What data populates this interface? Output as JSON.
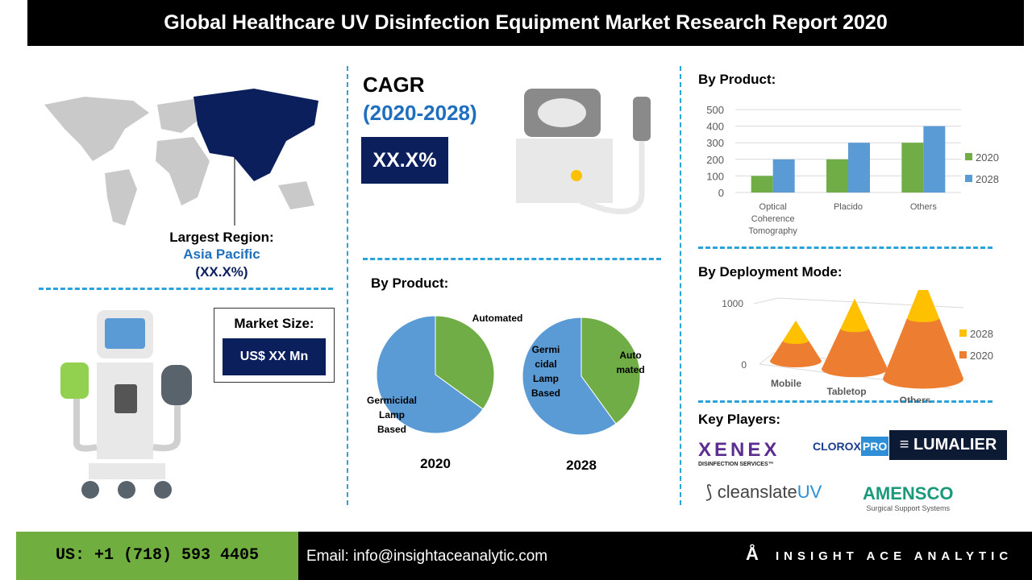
{
  "title": "Global Healthcare UV Disinfection Equipment  Market Research Report 2020",
  "region": {
    "label": "Largest Region:",
    "name": "Asia Pacific",
    "share": "(XX.X%)"
  },
  "cagr": {
    "label": "CAGR",
    "period": "(2020-2028)",
    "value": "XX.X%"
  },
  "market_size": {
    "label": "Market Size:",
    "value": "US$ XX Mn"
  },
  "pie_section": {
    "title": "By Product:"
  },
  "bar_section": {
    "title": "By Product:"
  },
  "cone_section": {
    "title": "By Deployment Mode:"
  },
  "key_players": {
    "title": "Key Players:",
    "logos": [
      "XENEX DISINFECTION SERVICES",
      "CLOROXPRO",
      "LUMALIER",
      "cleanslateUV",
      "AMENSCO Surgical Support Systems"
    ]
  },
  "footer": {
    "phone": "US: +1 (718) 593 4405",
    "email": "Email: info@insightaceanalytic.com",
    "brand": "INSIGHT ACE ANALYTIC"
  },
  "colors": {
    "green": "#70ad47",
    "blue": "#5b9bd5",
    "navy": "#0b1f5c",
    "dash": "#29a3d9",
    "yellow": "#ffc000",
    "orange": "#ed7d31"
  },
  "chart_data": [
    {
      "type": "bar",
      "title": "By Product:",
      "categories": [
        "Optical Coherence Tomography",
        "Placido",
        "Others"
      ],
      "series": [
        {
          "name": "2020",
          "values": [
            100,
            200,
            300
          ]
        },
        {
          "name": "2028",
          "values": [
            200,
            300,
            400
          ]
        }
      ],
      "ylim": [
        0,
        500
      ],
      "yticks": [
        0,
        100,
        200,
        300,
        400,
        500
      ],
      "grid": true,
      "legend": "right"
    },
    {
      "type": "pie",
      "title": "2020",
      "labels": [
        "Automated",
        "Germicidal Lamp Based"
      ],
      "values": [
        35,
        65
      ]
    },
    {
      "type": "pie",
      "title": "2028",
      "labels": [
        "Auto mated",
        "Germi cidal Lamp Based"
      ],
      "values": [
        40,
        60
      ]
    },
    {
      "type": "bar",
      "subtype": "3d-cone-stacked",
      "title": "By Deployment Mode:",
      "categories": [
        "Mobile",
        "Tabletop",
        "Others"
      ],
      "series": [
        {
          "name": "2020",
          "values": [
            100,
            200,
            300
          ]
        },
        {
          "name": "2028",
          "values": [
            100,
            150,
            200
          ]
        }
      ],
      "yticks": [
        0,
        1000
      ],
      "legend": "right"
    }
  ]
}
